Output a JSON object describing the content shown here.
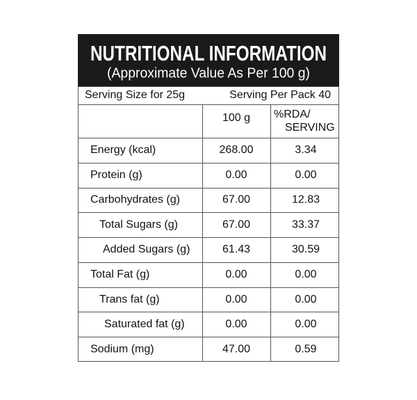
{
  "header": {
    "title": "NUTRITIONAL INFORMATION",
    "subtitle": "(Approximate Value As Per 100 g)"
  },
  "serving": {
    "size": "Serving Size for 25g",
    "per_pack": "Serving Per Pack 40"
  },
  "table": {
    "col_100g": "100 g",
    "col_rda": [
      "%RDA/",
      "SERVING"
    ],
    "rows": [
      [
        "Energy (kcal)",
        "268.00",
        "3.34"
      ],
      [
        "Protein (g)",
        "0.00",
        "0.00"
      ],
      [
        "Carbohydrates (g)",
        "67.00",
        "12.83"
      ],
      [
        "Total Sugars (g)",
        "67.00",
        "33.37"
      ],
      [
        "Added Sugars (g)",
        "61.43",
        "30.59"
      ],
      [
        "Total Fat (g)",
        "0.00",
        "0.00"
      ],
      [
        "Trans fat (g)",
        "0.00",
        "0.00"
      ],
      [
        "Saturated fat (g)",
        "0.00",
        "0.00"
      ],
      [
        "Sodium (mg)",
        "47.00",
        "0.59"
      ]
    ]
  }
}
